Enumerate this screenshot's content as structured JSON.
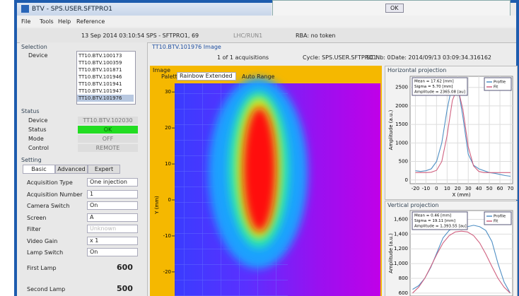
{
  "window": {
    "title": "BTV - SPS.USER.SFTPRO1",
    "dialog_button": "OK"
  },
  "menu": [
    "File",
    "Tools",
    "Help",
    "Reference"
  ],
  "toolbar": {
    "timestamp": "13 Sep 2014  03:10:54  SPS - SFTPRO1, 69",
    "context": "LHC/RUN1",
    "rba": "RBA: no token"
  },
  "selection": {
    "title": "Selection",
    "label": "Device",
    "devices": [
      "TT10.BTV.100173",
      "TT10.BTV.100359",
      "TT10.BTV.101871",
      "TT10.BTV.101946",
      "TT10.BTV.101941",
      "TT10.BTV.101947",
      "TT10.BTV.101976"
    ],
    "selected": 6
  },
  "status": {
    "title": "Status",
    "fields": [
      {
        "label": "Device",
        "value": "TT10.BTV.102030"
      },
      {
        "label": "Status",
        "value": "OK"
      },
      {
        "label": "Mode",
        "value": "OFF"
      },
      {
        "label": "Control",
        "value": "REMOTE"
      }
    ]
  },
  "setting": {
    "title": "Setting",
    "tabs": [
      "Basic",
      "Advanced",
      "Expert"
    ],
    "active_tab": 0,
    "fields": [
      {
        "label": "Acquisition Type",
        "value": "One injection"
      },
      {
        "label": "Acquisition Number",
        "value": "1"
      },
      {
        "label": "Camera Switch",
        "value": "On"
      },
      {
        "label": "Screen",
        "value": "A"
      },
      {
        "label": "Filter",
        "value": "Unknown"
      },
      {
        "label": "Video Gain",
        "value": "x 1"
      },
      {
        "label": "Lamp Switch",
        "value": "On"
      }
    ],
    "lamps": [
      {
        "label": "First Lamp",
        "value": "600"
      },
      {
        "label": "Second Lamp",
        "value": "500"
      }
    ]
  },
  "image_panel": {
    "title": "TT10.BTV.101976 Image",
    "acquisitions": "1 of 1 acquisitions",
    "cycle": "Cycle: SPS.USER.SFTPRO1",
    "sc": "SC Nb: 0",
    "date": "Date: 2014/09/13 03:09:34.316162",
    "frame_title": "Image",
    "palette_label": "Palette:",
    "palette": "Rainbow Extended",
    "auto_range": "Auto Range",
    "y_label": "Y (mm)",
    "ylim": [
      32.4,
      -26.7
    ],
    "yticks": [
      30,
      20,
      10,
      0,
      -10,
      -20
    ]
  },
  "horizontal_projection": {
    "title": "Horizontal projection",
    "stats": [
      "Mean = 17.62 [mm]",
      "Sigma = 5.70 [mm]",
      "Amplitude = 2365.08 [au]"
    ],
    "x_label": "X (mm)",
    "y_label": "Amplitude (a.u.)",
    "xlim": [
      -25,
      72
    ],
    "ylim": [
      -100,
      2800
    ],
    "xticks": [
      -20,
      -10,
      0,
      10,
      20,
      30,
      40,
      50,
      60,
      70
    ],
    "yticks": [
      0,
      500,
      1000,
      1500,
      2000,
      2500
    ],
    "x": [
      -20,
      -15,
      -10,
      -5,
      0,
      5,
      10,
      15,
      20,
      25,
      30,
      35,
      40,
      45,
      50,
      55,
      60,
      65,
      70
    ],
    "series": [
      {
        "name": "Profile",
        "color": "#4f8fc4",
        "values": [
          250,
          230,
          250,
          300,
          500,
          1000,
          1900,
          2600,
          2550,
          1700,
          700,
          400,
          300,
          250,
          200,
          180,
          150,
          120,
          100
        ]
      },
      {
        "name": "Fit",
        "color": "#d0607f",
        "values": [
          200,
          200,
          200,
          210,
          260,
          500,
          1200,
          2150,
          2500,
          1900,
          900,
          380,
          230,
          200,
          200,
          200,
          200,
          200,
          200
        ]
      }
    ]
  },
  "vertical_projection": {
    "title": "Vertical projection",
    "stats": [
      "Mean = 0.46 [mm]",
      "Sigma = 19.11 [mm]",
      "Amplitude = 1,393.55 [au]"
    ],
    "y_label": "Amplitude (a.u.)",
    "xlim": [
      -42,
      42
    ],
    "ylim": [
      560,
      1720
    ],
    "yticks": [
      600,
      800,
      {
        "value": 1000,
        "label": "1,000"
      },
      {
        "value": 1200,
        "label": "1,200"
      },
      {
        "value": 1400,
        "label": "1,400"
      },
      {
        "value": 1600,
        "label": "1,600"
      }
    ],
    "x": [
      -40,
      -35,
      -30,
      -25,
      -20,
      -15,
      -10,
      -5,
      0,
      5,
      10,
      15,
      20,
      25,
      30,
      35,
      40
    ],
    "series": [
      {
        "name": "Profile",
        "color": "#4f8fc4",
        "values": [
          650,
          700,
          800,
          950,
          1150,
          1350,
          1450,
          1500,
          1480,
          1500,
          1520,
          1500,
          1450,
          1300,
          1000,
          750,
          600
        ]
      },
      {
        "name": "Fit",
        "color": "#d0607f",
        "values": [
          600,
          680,
          800,
          960,
          1130,
          1280,
          1380,
          1430,
          1440,
          1430,
          1380,
          1280,
          1130,
          960,
          800,
          680,
          600
        ]
      }
    ]
  }
}
